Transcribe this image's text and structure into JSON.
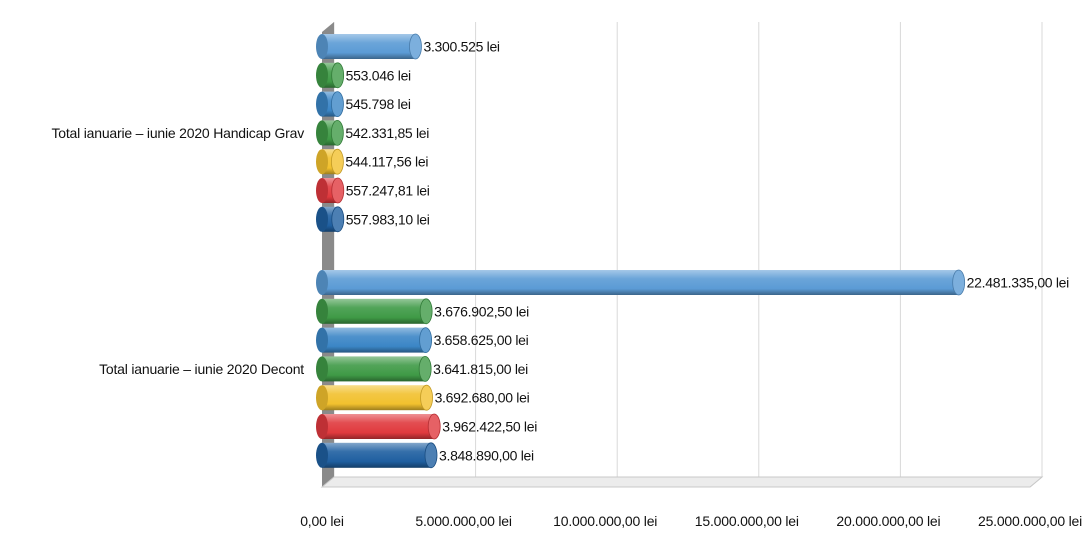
{
  "chart_data": {
    "type": "bar",
    "orientation": "horizontal",
    "style": "3d-cylinder",
    "grid": true,
    "legend": "none",
    "xlim": [
      0,
      25000000
    ],
    "x_tick_values": [
      0,
      5000000,
      10000000,
      15000000,
      20000000,
      25000000
    ],
    "x_tick_labels": [
      "0,00 lei",
      "5.000.000,00 lei",
      "10.000.000,00 lei",
      "15.000.000,00 lei",
      "20.000.000,00 lei",
      "25.000.000,00 lei"
    ],
    "categories": [
      {
        "label": "Total ianuarie – iunie 2020 Handicap Grav",
        "bars": [
          {
            "value": 3300525,
            "label": "3.300.525 lei",
            "color": "#5b9bd5"
          },
          {
            "value": 553046,
            "label": "553.046 lei",
            "color": "#3f9a46"
          },
          {
            "value": 545798,
            "label": "545.798 lei",
            "color": "#3b86c6"
          },
          {
            "value": 542331.85,
            "label": "542.331,85 lei",
            "color": "#3f9a46"
          },
          {
            "value": 544117.56,
            "label": "544.117,56 lei",
            "color": "#f2c12e"
          },
          {
            "value": 557247.81,
            "label": "557.247,81 lei",
            "color": "#e0393e"
          },
          {
            "value": 557983.1,
            "label": "557.983,10 lei",
            "color": "#1f5fa0"
          }
        ]
      },
      {
        "label": "Total ianuarie – iunie 2020 Decont",
        "bars": [
          {
            "value": 22481335.0,
            "label": "22.481.335,00 lei",
            "color": "#5b9bd5"
          },
          {
            "value": 3676902.5,
            "label": "3.676.902,50 lei",
            "color": "#3f9a46"
          },
          {
            "value": 3658625.0,
            "label": "3.658.625,00 lei",
            "color": "#3b86c6"
          },
          {
            "value": 3641815.0,
            "label": "3.641.815,00 lei",
            "color": "#3f9a46"
          },
          {
            "value": 3692680.0,
            "label": "3.692.680,00 lei",
            "color": "#f2c12e"
          },
          {
            "value": 3962422.5,
            "label": "3.962.422,50 lei",
            "color": "#e0393e"
          },
          {
            "value": 3848890.0,
            "label": "3.848.890,00 lei",
            "color": "#1f5fa0"
          }
        ]
      }
    ]
  }
}
